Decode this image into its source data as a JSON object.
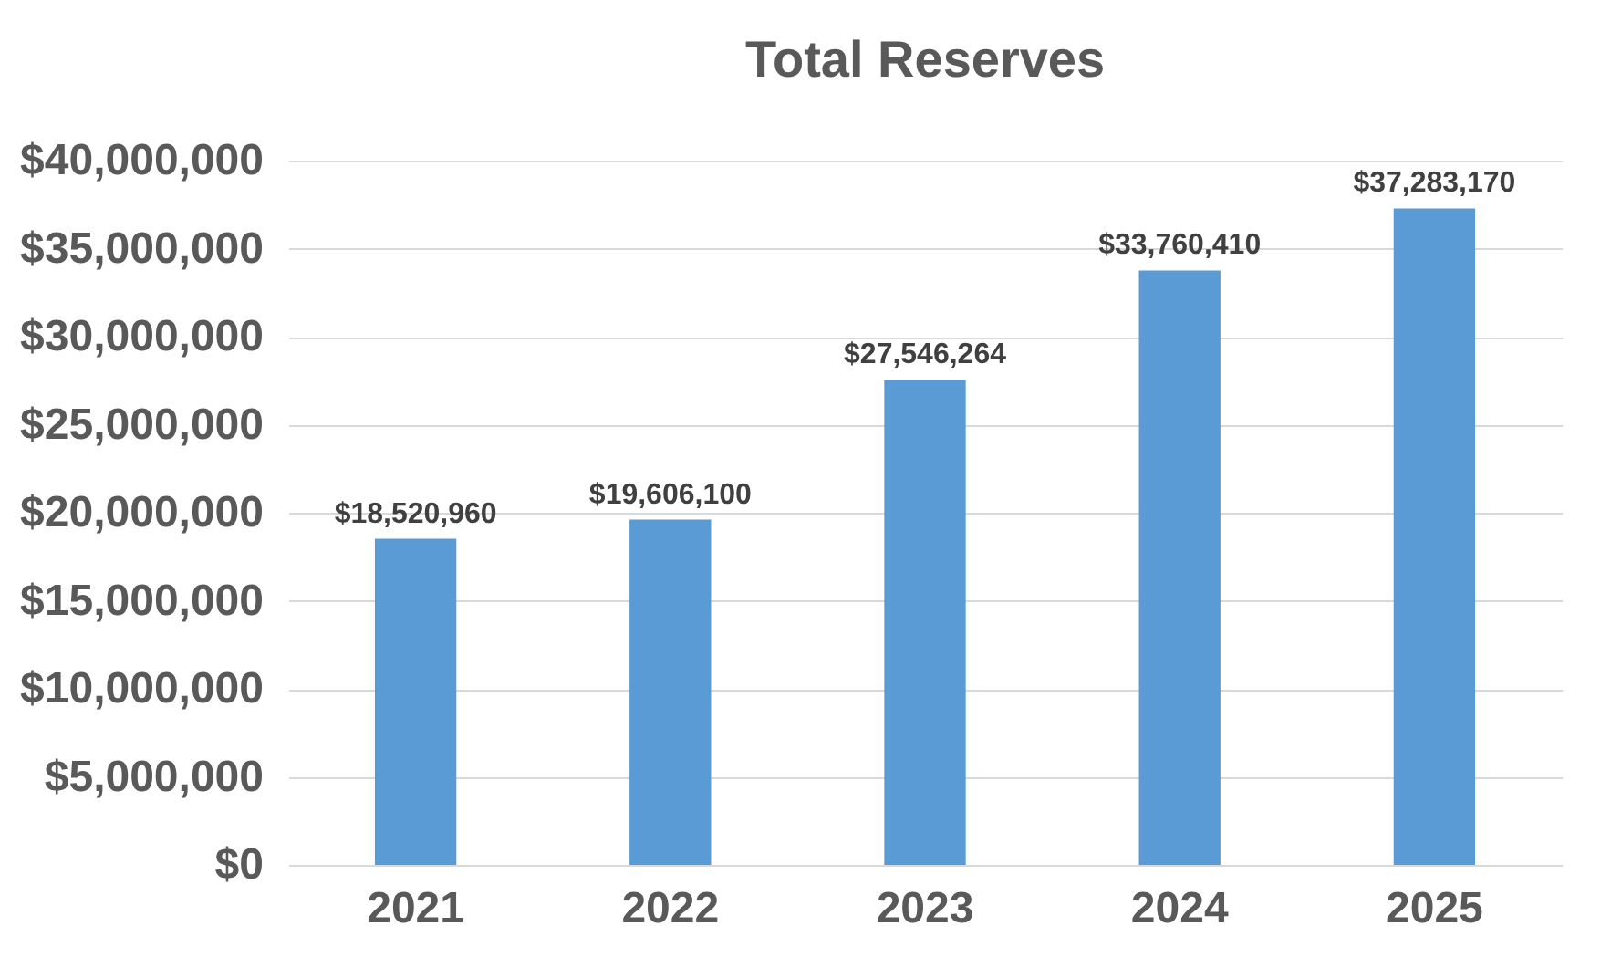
{
  "chart_data": {
    "type": "bar",
    "title": "Total Reserves",
    "categories": [
      "2021",
      "2022",
      "2023",
      "2024",
      "2025"
    ],
    "values": [
      18520960,
      19606100,
      27546264,
      33760410,
      37283170
    ],
    "value_labels": [
      "$18,520,960",
      "$19,606,100",
      "$27,546,264",
      "$33,760,410",
      "$37,283,170"
    ],
    "color": "#5b9bd5",
    "ylim": [
      0,
      40000000
    ],
    "yticks": [
      {
        "value": 0,
        "label": "$0"
      },
      {
        "value": 5000000,
        "label": "$5,000,000"
      },
      {
        "value": 10000000,
        "label": "$10,000,000"
      },
      {
        "value": 15000000,
        "label": "$15,000,000"
      },
      {
        "value": 20000000,
        "label": "$20,000,000"
      },
      {
        "value": 25000000,
        "label": "$25,000,000"
      },
      {
        "value": 30000000,
        "label": "$30,000,000"
      },
      {
        "value": 35000000,
        "label": "$35,000,000"
      },
      {
        "value": 40000000,
        "label": "$40,000,000"
      }
    ],
    "grid": "y"
  }
}
